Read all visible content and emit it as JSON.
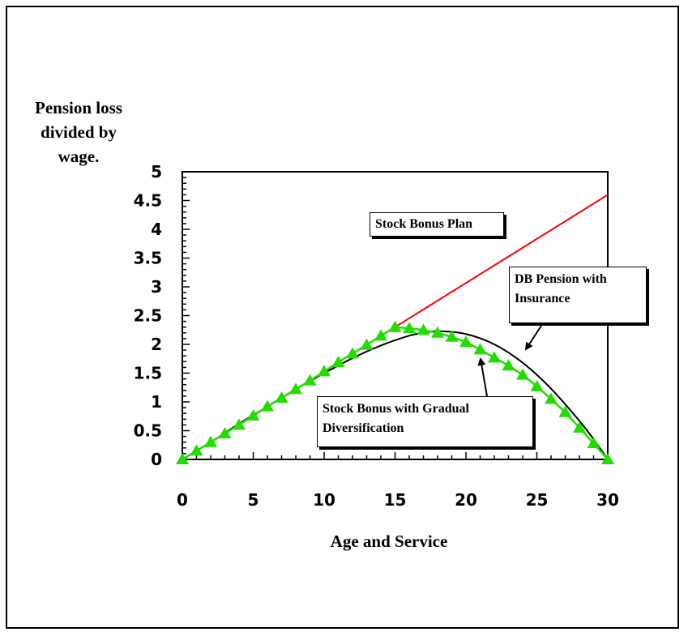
{
  "chart_data": {
    "type": "line",
    "title": "",
    "ylabel_lines": [
      "Pension loss",
      "divided by",
      "wage."
    ],
    "xlabel": "Age and Service",
    "xlim": [
      0,
      30
    ],
    "ylim": [
      0,
      5
    ],
    "xticks": [
      "0",
      "5",
      "10",
      "15",
      "20",
      "25",
      "30"
    ],
    "yticks": [
      "0",
      "0.5",
      "1",
      "1.5",
      "2",
      "2.5",
      "3",
      "3.5",
      "4",
      "4.5",
      "5"
    ],
    "grid": false,
    "legend": "none",
    "series": [
      {
        "name": "Stock Bonus Plan",
        "color": "#ff0000",
        "marker": "none",
        "x": [
          15,
          30
        ],
        "y": [
          2.3,
          4.6
        ]
      },
      {
        "name": "DB Pension with Insurance",
        "color": "#000000",
        "marker": "none",
        "x": [
          0,
          2,
          4,
          6,
          8,
          10,
          12,
          14,
          16,
          17,
          18,
          20,
          22,
          24,
          26,
          28,
          29,
          30
        ],
        "y": [
          0,
          0.3,
          0.62,
          0.92,
          1.22,
          1.5,
          1.76,
          1.98,
          2.15,
          2.2,
          2.23,
          2.18,
          2.0,
          1.68,
          1.23,
          0.67,
          0.35,
          0
        ]
      },
      {
        "name": "Stock Bonus with Gradual Diversification",
        "color": "#22dd00",
        "marker": "triangle",
        "x": [
          0,
          1,
          2,
          3,
          4,
          5,
          6,
          7,
          8,
          9,
          10,
          11,
          12,
          13,
          14,
          15,
          16,
          17,
          18,
          19,
          20,
          21,
          22,
          23,
          24,
          25,
          26,
          27,
          28,
          29,
          30
        ],
        "y": [
          0,
          0.15,
          0.3,
          0.45,
          0.6,
          0.76,
          0.92,
          1.07,
          1.22,
          1.37,
          1.53,
          1.69,
          1.84,
          1.99,
          2.15,
          2.3,
          2.28,
          2.25,
          2.2,
          2.13,
          2.04,
          1.91,
          1.77,
          1.63,
          1.47,
          1.27,
          1.05,
          0.82,
          0.55,
          0.28,
          0
        ]
      }
    ],
    "annotations": {
      "stock_bonus_plan": [
        "Stock Bonus Plan"
      ],
      "db_pension": [
        "DB Pension with",
        "Insurance"
      ],
      "gradual": [
        "Stock Bonus with Gradual",
        "Diversification"
      ]
    }
  }
}
